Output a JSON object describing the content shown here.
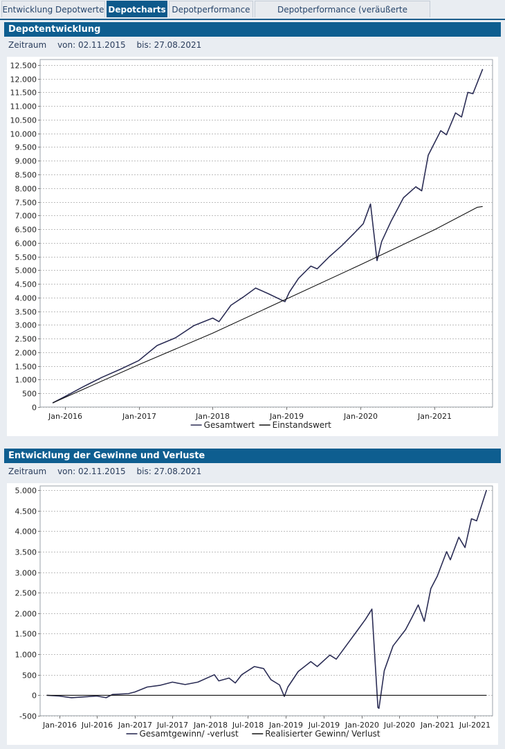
{
  "tabs": [
    {
      "label": "Entwicklung Depotwerte",
      "active": false
    },
    {
      "label": "Depotcharts",
      "active": true
    },
    {
      "label": "Depotperformance",
      "active": false
    },
    {
      "label": "Depotperformance (veräußerte Positionen)",
      "active": false
    }
  ],
  "panel1": {
    "title": "Depotentwicklung",
    "zeitraum_label": "Zeitraum",
    "von": "von: 02.11.2015",
    "bis": "bis: 27.08.2021"
  },
  "panel2": {
    "title": "Entwicklung der Gewinne und Verluste",
    "zeitraum_label": "Zeitraum",
    "von": "von: 02.11.2015",
    "bis": "bis: 27.08.2021"
  },
  "colors": {
    "accent": "#0e5e90",
    "series_dark": "#2b2d55",
    "series_black": "#111111"
  },
  "chart_data": [
    {
      "type": "line",
      "title": "",
      "xlabel": "",
      "ylabel": "",
      "ylim": [
        0,
        12700
      ],
      "yticks": [
        0,
        500,
        1000,
        1500,
        2000,
        2500,
        3000,
        3500,
        4000,
        4500,
        5000,
        5500,
        6000,
        6500,
        7000,
        7500,
        8000,
        8500,
        9000,
        9500,
        10000,
        10500,
        11000,
        11500,
        12000,
        12500
      ],
      "ytick_labels": [
        "0",
        "500",
        "1.000",
        "1.500",
        "2.000",
        "2.500",
        "3.000",
        "3.500",
        "4.000",
        "4.500",
        "5.000",
        "5.500",
        "6.000",
        "6.500",
        "7.000",
        "7.500",
        "8.000",
        "8.500",
        "9.000",
        "9.500",
        "10.000",
        "10.500",
        "11.000",
        "11.500",
        "12.000",
        "12.500"
      ],
      "xticks": [
        "2016-01-01",
        "2017-01-01",
        "2018-01-01",
        "2019-01-01",
        "2020-01-01",
        "2021-01-01"
      ],
      "xtick_labels": [
        "Jan-2016",
        "Jan-2017",
        "Jan-2018",
        "Jan-2019",
        "Jan-2020",
        "Jan-2021"
      ],
      "xlim": [
        "2015-09-01",
        "2021-10-15"
      ],
      "grid": true,
      "legend": "bottom",
      "series": [
        {
          "name": "Gesamtwert",
          "color": "#2b2d55",
          "points": [
            [
              "2015-11-02",
              150
            ],
            [
              "2016-01-01",
              380
            ],
            [
              "2016-04-01",
              740
            ],
            [
              "2016-07-01",
              1080
            ],
            [
              "2016-10-01",
              1380
            ],
            [
              "2017-01-01",
              1700
            ],
            [
              "2017-04-01",
              2250
            ],
            [
              "2017-07-01",
              2530
            ],
            [
              "2017-10-01",
              2980
            ],
            [
              "2018-01-01",
              3250
            ],
            [
              "2018-02-01",
              3120
            ],
            [
              "2018-04-01",
              3720
            ],
            [
              "2018-06-01",
              4020
            ],
            [
              "2018-08-01",
              4350
            ],
            [
              "2018-10-01",
              4150
            ],
            [
              "2018-12-24",
              3850
            ],
            [
              "2019-01-15",
              4200
            ],
            [
              "2019-03-01",
              4700
            ],
            [
              "2019-05-01",
              5150
            ],
            [
              "2019-06-01",
              5050
            ],
            [
              "2019-08-01",
              5500
            ],
            [
              "2019-10-01",
              5900
            ],
            [
              "2019-12-01",
              6350
            ],
            [
              "2020-01-15",
              6700
            ],
            [
              "2020-02-20",
              7420
            ],
            [
              "2020-03-23",
              5350
            ],
            [
              "2020-04-15",
              6050
            ],
            [
              "2020-06-01",
              6800
            ],
            [
              "2020-08-01",
              7650
            ],
            [
              "2020-10-01",
              8050
            ],
            [
              "2020-10-30",
              7900
            ],
            [
              "2020-12-01",
              9200
            ],
            [
              "2021-02-01",
              10100
            ],
            [
              "2021-03-01",
              9950
            ],
            [
              "2021-04-15",
              10750
            ],
            [
              "2021-05-15",
              10600
            ],
            [
              "2021-06-15",
              11500
            ],
            [
              "2021-07-10",
              11450
            ],
            [
              "2021-08-27",
              12350
            ]
          ]
        },
        {
          "name": "Einstandswert",
          "color": "#111111",
          "points": [
            [
              "2015-11-02",
              150
            ],
            [
              "2016-01-01",
              350
            ],
            [
              "2017-01-01",
              1550
            ],
            [
              "2018-01-01",
              2700
            ],
            [
              "2019-01-01",
              3950
            ],
            [
              "2020-01-01",
              5200
            ],
            [
              "2021-01-01",
              6480
            ],
            [
              "2021-08-01",
              7300
            ],
            [
              "2021-08-27",
              7330
            ]
          ]
        }
      ]
    },
    {
      "type": "line",
      "title": "",
      "xlabel": "",
      "ylabel": "",
      "ylim": [
        -500,
        5100
      ],
      "yticks": [
        -500,
        0,
        500,
        1000,
        1500,
        2000,
        2500,
        3000,
        3500,
        4000,
        4500,
        5000
      ],
      "ytick_labels": [
        "-500",
        "0",
        "500",
        "1.000",
        "1.500",
        "2.000",
        "2.500",
        "3.000",
        "3.500",
        "4.000",
        "4.500",
        "5.000"
      ],
      "xticks": [
        "2016-01-01",
        "2016-07-01",
        "2017-01-01",
        "2017-07-01",
        "2018-01-01",
        "2018-07-01",
        "2019-01-01",
        "2019-07-01",
        "2020-01-01",
        "2020-07-01",
        "2021-01-01",
        "2021-07-01"
      ],
      "xtick_labels": [
        "Jan-2016",
        "Jul-2016",
        "Jan-2017",
        "Jul-2017",
        "Jan-2018",
        "Jul-2018",
        "Jan-2019",
        "Jul-2019",
        "Jan-2020",
        "Jul-2020",
        "Jan-2021",
        "Jul-2021"
      ],
      "xlim": [
        "2015-10-01",
        "2021-09-25"
      ],
      "grid": true,
      "legend": "bottom",
      "series": [
        {
          "name": "Gesamtgewinn/ -verlust",
          "color": "#2b2d55",
          "points": [
            [
              "2015-11-02",
              0
            ],
            [
              "2016-01-01",
              -20
            ],
            [
              "2016-03-01",
              -60
            ],
            [
              "2016-05-01",
              -40
            ],
            [
              "2016-07-01",
              -20
            ],
            [
              "2016-08-15",
              -60
            ],
            [
              "2016-09-15",
              20
            ],
            [
              "2016-12-01",
              40
            ],
            [
              "2017-01-01",
              80
            ],
            [
              "2017-03-01",
              200
            ],
            [
              "2017-05-01",
              240
            ],
            [
              "2017-07-01",
              320
            ],
            [
              "2017-09-01",
              260
            ],
            [
              "2017-11-01",
              320
            ],
            [
              "2018-01-20",
              500
            ],
            [
              "2018-02-10",
              350
            ],
            [
              "2018-04-01",
              420
            ],
            [
              "2018-05-01",
              300
            ],
            [
              "2018-06-01",
              500
            ],
            [
              "2018-08-01",
              700
            ],
            [
              "2018-09-15",
              650
            ],
            [
              "2018-10-20",
              380
            ],
            [
              "2018-12-01",
              250
            ],
            [
              "2018-12-24",
              -30
            ],
            [
              "2019-01-10",
              200
            ],
            [
              "2019-03-01",
              580
            ],
            [
              "2019-05-01",
              820
            ],
            [
              "2019-06-01",
              700
            ],
            [
              "2019-08-01",
              980
            ],
            [
              "2019-09-01",
              880
            ],
            [
              "2019-11-01",
              1300
            ],
            [
              "2019-12-15",
              1600
            ],
            [
              "2020-01-20",
              1850
            ],
            [
              "2020-02-20",
              2100
            ],
            [
              "2020-03-20",
              -300
            ],
            [
              "2020-03-25",
              -320
            ],
            [
              "2020-04-20",
              600
            ],
            [
              "2020-06-01",
              1200
            ],
            [
              "2020-08-01",
              1600
            ],
            [
              "2020-09-01",
              1900
            ],
            [
              "2020-10-01",
              2200
            ],
            [
              "2020-10-30",
              1800
            ],
            [
              "2020-12-01",
              2600
            ],
            [
              "2021-01-01",
              2900
            ],
            [
              "2021-02-15",
              3500
            ],
            [
              "2021-03-05",
              3300
            ],
            [
              "2021-04-15",
              3850
            ],
            [
              "2021-05-15",
              3600
            ],
            [
              "2021-06-15",
              4300
            ],
            [
              "2021-07-10",
              4250
            ],
            [
              "2021-08-27",
              5000
            ]
          ]
        },
        {
          "name": "Realisierter Gewinn/ Verlust",
          "color": "#111111",
          "points": [
            [
              "2015-11-02",
              0
            ],
            [
              "2021-08-27",
              0
            ]
          ]
        }
      ]
    }
  ]
}
